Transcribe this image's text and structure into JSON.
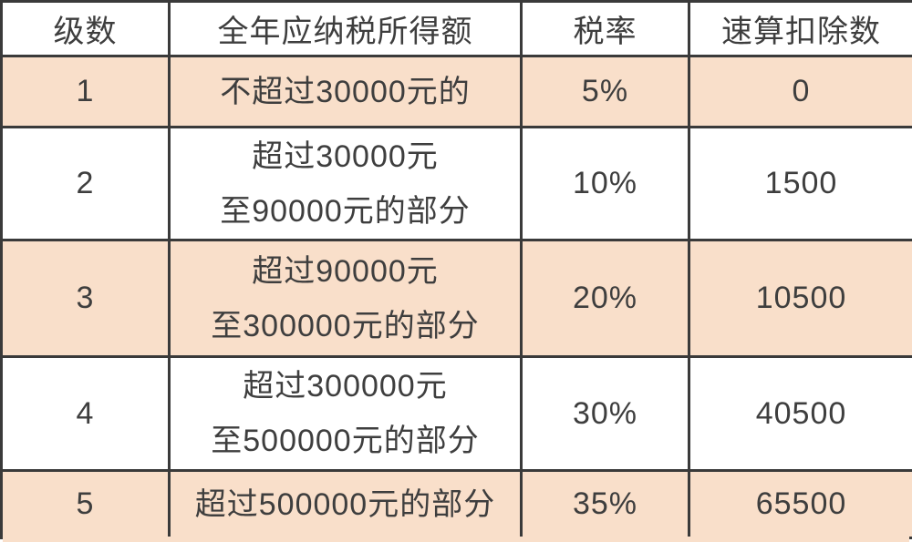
{
  "colors": {
    "shaded_row_bg": "#f9dfca",
    "row_bg": "#ffffff",
    "border": "#3a3a3a",
    "text": "#3e3e3e"
  },
  "table": {
    "headers": [
      "级数",
      "全年应纳税所得额",
      "税率",
      "速算扣除数"
    ],
    "rows": [
      {
        "level": "1",
        "income_line1": "不超过30000元的",
        "income_line2": "",
        "rate": "5%",
        "deduction": "0"
      },
      {
        "level": "2",
        "income_line1": "超过30000元",
        "income_line2": "至90000元的部分",
        "rate": "10%",
        "deduction": "1500"
      },
      {
        "level": "3",
        "income_line1": "超过90000元",
        "income_line2": "至300000元的部分",
        "rate": "20%",
        "deduction": "10500"
      },
      {
        "level": "4",
        "income_line1": "超过300000元",
        "income_line2": "至500000元的部分",
        "rate": "30%",
        "deduction": "40500"
      },
      {
        "level": "5",
        "income_line1": "超过500000元的部分",
        "income_line2": "",
        "rate": "35%",
        "deduction": "65500"
      }
    ]
  },
  "chart_data": {
    "type": "table",
    "columns": [
      "级数",
      "全年应纳税所得额",
      "税率",
      "速算扣除数"
    ],
    "rows": [
      [
        "1",
        "不超过30000元的",
        "5%",
        "0"
      ],
      [
        "2",
        "超过30000元至90000元的部分",
        "10%",
        "1500"
      ],
      [
        "3",
        "超过90000元至300000元的部分",
        "20%",
        "10500"
      ],
      [
        "4",
        "超过300000元至500000元的部分",
        "30%",
        "40500"
      ],
      [
        "5",
        "超过500000元的部分",
        "35%",
        "65500"
      ]
    ],
    "rates_percent": [
      5,
      10,
      20,
      30,
      35
    ],
    "quick_deductions": [
      0,
      1500,
      10500,
      40500,
      65500
    ],
    "bracket_upper_bounds_yuan": [
      30000,
      90000,
      300000,
      500000,
      null
    ]
  }
}
